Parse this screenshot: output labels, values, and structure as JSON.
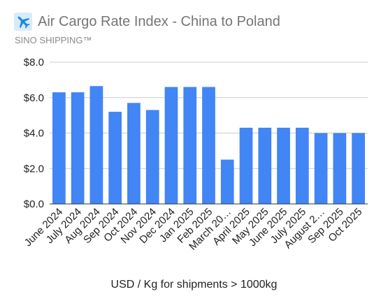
{
  "header": {
    "title": "Air Cargo Rate Index - China to Poland",
    "subtitle": "SINO SHIPPING™",
    "icon": "airplane-icon"
  },
  "chart_data": {
    "type": "bar",
    "title": "Air Cargo Rate Index - China to Poland",
    "subtitle": "SINO SHIPPING™",
    "xlabel": "USD / Kg for shipments > 1000kg",
    "ylabel": "",
    "ylim": [
      0,
      8
    ],
    "yticks": [
      "$0.0",
      "$2.0",
      "$4.0",
      "$6.0",
      "$8.0"
    ],
    "grid": true,
    "color": "#4285f4",
    "categories": [
      "June 2024",
      "July 2024",
      "Aug 2024",
      "Sep 2024",
      "Oct 2024",
      "Nov 2024",
      "Dec 2024",
      "Jan 2025",
      "Feb 2025",
      "March 20…",
      "April 2025",
      "May 2025",
      "June 2025",
      "July 2025",
      "August 2…",
      "Sep 2025",
      "Oct 2025"
    ],
    "values": [
      6.3,
      6.3,
      6.65,
      5.2,
      5.7,
      5.3,
      6.6,
      6.6,
      6.6,
      2.5,
      4.3,
      4.3,
      4.3,
      4.3,
      4.0,
      4.0,
      4.0
    ]
  }
}
